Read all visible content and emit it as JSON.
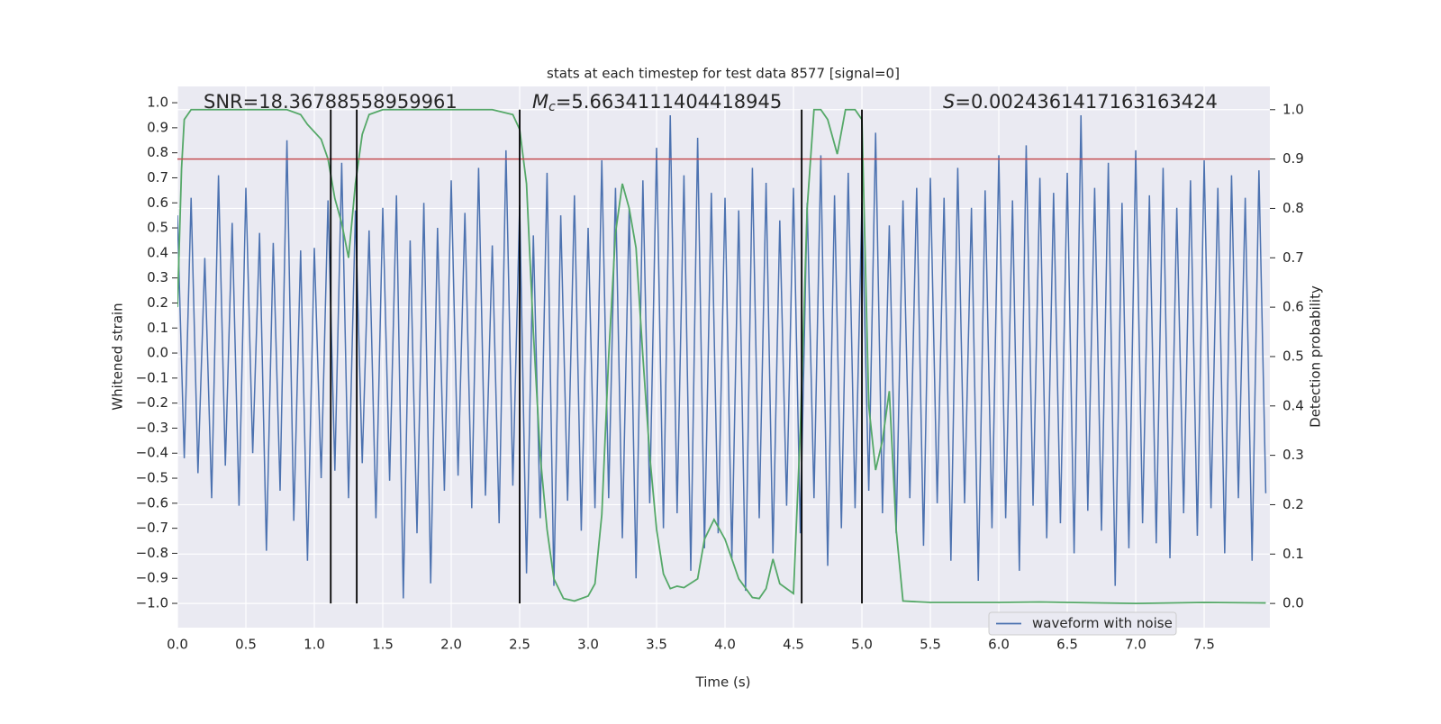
{
  "chart_data": {
    "type": "line",
    "title": "stats at each timestep for test data 8577 [signal=0]",
    "xlabel": "Time (s)",
    "ylabel": "Whitened strain",
    "y2label": "Detection probability",
    "xlim": [
      0,
      7.98
    ],
    "ylim": [
      -1.097,
      1.065
    ],
    "y2lim": [
      -0.049,
      1.047
    ],
    "xticks": [
      {
        "value": 0,
        "label": "0.0"
      },
      0.5,
      {
        "value": 1,
        "label": "1.0"
      },
      1.5,
      {
        "value": 2,
        "label": "2.0"
      },
      2.5,
      {
        "value": 3,
        "label": "3.0"
      },
      3.5,
      {
        "value": 4,
        "label": "4.0"
      },
      4.5,
      {
        "value": 5,
        "label": "5.0"
      },
      5.5,
      {
        "value": 6,
        "label": "6.0"
      },
      6.5,
      {
        "value": 7,
        "label": "7.0"
      },
      7.5
    ],
    "yticks": [
      {
        "value": -1,
        "label": "−1.0"
      },
      {
        "value": -0.9,
        "label": "−0.9"
      },
      {
        "value": -0.8,
        "label": "−0.8"
      },
      {
        "value": -0.7,
        "label": "−0.7"
      },
      {
        "value": -0.6,
        "label": "−0.6"
      },
      {
        "value": -0.5,
        "label": "−0.5"
      },
      {
        "value": -0.4,
        "label": "−0.4"
      },
      {
        "value": -0.3,
        "label": "−0.3"
      },
      {
        "value": -0.2,
        "label": "−0.2"
      },
      {
        "value": -0.1,
        "label": "−0.1"
      },
      {
        "value": 0,
        "label": "0.0"
      },
      0.1,
      0.2,
      0.3,
      0.4,
      0.5,
      0.6,
      0.7,
      0.8,
      0.9,
      {
        "value": 1,
        "label": "1.0"
      }
    ],
    "y2ticks": [
      {
        "value": 0,
        "label": "0.0"
      },
      0.1,
      0.2,
      0.3,
      0.4,
      0.5,
      0.6,
      0.7,
      0.8,
      0.9,
      {
        "value": 1,
        "label": "1.0"
      }
    ],
    "grid": true,
    "legend": "lower right",
    "annotations": [
      {
        "text": "SNR=18.36788558959961"
      },
      {
        "symbol": "M",
        "subscript": "c",
        "text": "=5.6634111404418945"
      },
      {
        "symbol": "S",
        "text": "=0.0024361417163163424"
      }
    ],
    "hline": {
      "value": 0.9,
      "axis": "y2",
      "color": "#c44e52"
    },
    "vlines": {
      "x": [
        1.12,
        1.31,
        2.5,
        4.56,
        5.0
      ],
      "span": [
        0,
        1
      ],
      "axis": "y2",
      "color": "#000000"
    },
    "series": [
      {
        "name": "waveform with noise",
        "color": "#4c72b0",
        "x": [
          0,
          0.05,
          0.1,
          0.15,
          0.2,
          0.25,
          0.3,
          0.35,
          0.4,
          0.45,
          0.5,
          0.55,
          0.6,
          0.65,
          0.7,
          0.75,
          0.8,
          0.85,
          0.9,
          0.95,
          1,
          1.05,
          1.1,
          1.15,
          1.2,
          1.25,
          1.3,
          1.35,
          1.4,
          1.45,
          1.5,
          1.55,
          1.6,
          1.65,
          1.7,
          1.75,
          1.8,
          1.85,
          1.9,
          1.95,
          2,
          2.05,
          2.1,
          2.15,
          2.2,
          2.25,
          2.3,
          2.35,
          2.4,
          2.45,
          2.5,
          2.55,
          2.6,
          2.65,
          2.7,
          2.75,
          2.8,
          2.85,
          2.9,
          2.95,
          3,
          3.05,
          3.1,
          3.15,
          3.2,
          3.25,
          3.3,
          3.35,
          3.4,
          3.45,
          3.5,
          3.55,
          3.6,
          3.65,
          3.7,
          3.75,
          3.8,
          3.85,
          3.9,
          3.95,
          4,
          4.05,
          4.1,
          4.15,
          4.2,
          4.25,
          4.3,
          4.35,
          4.4,
          4.45,
          4.5,
          4.55,
          4.6,
          4.65,
          4.7,
          4.75,
          4.8,
          4.85,
          4.9,
          4.95,
          5,
          5.05,
          5.1,
          5.15,
          5.2,
          5.25,
          5.3,
          5.35,
          5.4,
          5.45,
          5.5,
          5.55,
          5.6,
          5.65,
          5.7,
          5.75,
          5.8,
          5.85,
          5.9,
          5.95,
          6,
          6.05,
          6.1,
          6.15,
          6.2,
          6.25,
          6.3,
          6.35,
          6.4,
          6.45,
          6.5,
          6.55,
          6.6,
          6.65,
          6.7,
          6.75,
          6.8,
          6.85,
          6.9,
          6.95,
          7,
          7.05,
          7.1,
          7.15,
          7.2,
          7.25,
          7.3,
          7.35,
          7.4,
          7.45,
          7.5,
          7.55,
          7.6,
          7.65,
          7.7,
          7.75,
          7.8,
          7.85,
          7.9,
          7.95
        ],
        "values": [
          0.55,
          -0.42,
          0.62,
          -0.48,
          0.38,
          -0.58,
          0.71,
          -0.45,
          0.52,
          -0.61,
          0.66,
          -0.4,
          0.48,
          -0.79,
          0.44,
          -0.55,
          0.85,
          -0.67,
          0.41,
          -0.83,
          0.42,
          -0.5,
          0.61,
          -0.47,
          0.76,
          -0.58,
          0.57,
          -0.44,
          0.49,
          -0.66,
          0.58,
          -0.51,
          0.63,
          -0.98,
          0.45,
          -0.72,
          0.6,
          -0.92,
          0.5,
          -0.55,
          0.69,
          -0.49,
          0.56,
          -0.62,
          0.74,
          -0.57,
          0.43,
          -0.68,
          0.81,
          -0.53,
          0.59,
          -0.88,
          0.47,
          -0.66,
          0.72,
          -0.93,
          0.55,
          -0.59,
          0.63,
          -0.71,
          0.5,
          -0.62,
          0.77,
          -0.58,
          0.66,
          -0.74,
          0.58,
          -0.9,
          0.69,
          -0.6,
          0.82,
          -0.7,
          0.95,
          -0.64,
          0.71,
          -0.87,
          0.86,
          -0.78,
          0.64,
          -0.72,
          0.62,
          -0.82,
          0.57,
          -0.95,
          0.74,
          -0.66,
          0.68,
          -0.8,
          0.53,
          -0.61,
          0.66,
          -0.72,
          0.6,
          -0.58,
          0.79,
          -0.85,
          0.63,
          -0.7,
          0.72,
          -0.62,
          0.6,
          -0.55,
          0.88,
          -0.64,
          0.51,
          -0.72,
          0.61,
          -0.58,
          0.66,
          -0.77,
          0.7,
          -0.6,
          0.62,
          -0.83,
          0.74,
          -0.6,
          0.58,
          -0.91,
          0.65,
          -0.7,
          0.79,
          -0.66,
          0.61,
          -0.87,
          0.83,
          -0.61,
          0.7,
          -0.74,
          0.64,
          -0.68,
          0.72,
          -0.8,
          0.95,
          -0.63,
          0.66,
          -0.71,
          0.76,
          -0.93,
          0.6,
          -0.78,
          0.81,
          -0.68,
          0.63,
          -0.76,
          0.74,
          -0.82,
          0.58,
          -0.64,
          0.69,
          -0.73,
          0.77,
          -0.62,
          0.66,
          -0.8,
          0.71,
          -0.58,
          0.62,
          -0.83,
          0.73,
          -0.56
        ]
      },
      {
        "color": "#55a868",
        "axis": "y2",
        "x": [
          0,
          0.03,
          0.05,
          0.1,
          0.2,
          0.5,
          0.8,
          0.9,
          0.95,
          1.05,
          1.1,
          1.15,
          1.2,
          1.25,
          1.3,
          1.35,
          1.4,
          1.5,
          2,
          2.3,
          2.45,
          2.5,
          2.55,
          2.6,
          2.65,
          2.7,
          2.75,
          2.82,
          2.9,
          3,
          3.05,
          3.1,
          3.15,
          3.2,
          3.25,
          3.3,
          3.35,
          3.4,
          3.45,
          3.5,
          3.55,
          3.6,
          3.65,
          3.7,
          3.8,
          3.85,
          3.92,
          4,
          4.1,
          4.2,
          4.25,
          4.3,
          4.35,
          4.4,
          4.5,
          4.55,
          4.6,
          4.65,
          4.7,
          4.75,
          4.82,
          4.88,
          4.95,
          5,
          5.05,
          5.1,
          5.15,
          5.2,
          5.25,
          5.3,
          5.5,
          6,
          6.3,
          6.5,
          7,
          7.5,
          7.95
        ],
        "values": [
          0.6,
          0.88,
          0.98,
          1,
          1,
          1,
          1,
          0.99,
          0.97,
          0.94,
          0.9,
          0.82,
          0.77,
          0.7,
          0.85,
          0.95,
          0.99,
          1,
          1,
          1,
          0.99,
          0.96,
          0.85,
          0.55,
          0.3,
          0.15,
          0.05,
          0.01,
          0.005,
          0.015,
          0.04,
          0.18,
          0.5,
          0.75,
          0.85,
          0.8,
          0.72,
          0.5,
          0.3,
          0.15,
          0.06,
          0.03,
          0.035,
          0.032,
          0.05,
          0.13,
          0.17,
          0.13,
          0.05,
          0.012,
          0.01,
          0.03,
          0.09,
          0.04,
          0.02,
          0.35,
          0.8,
          1,
          1,
          0.98,
          0.91,
          1,
          1,
          0.98,
          0.4,
          0.27,
          0.33,
          0.43,
          0.15,
          0.005,
          0.002,
          0.002,
          0.003,
          0.002,
          0,
          0.002,
          0.001
        ]
      }
    ]
  }
}
